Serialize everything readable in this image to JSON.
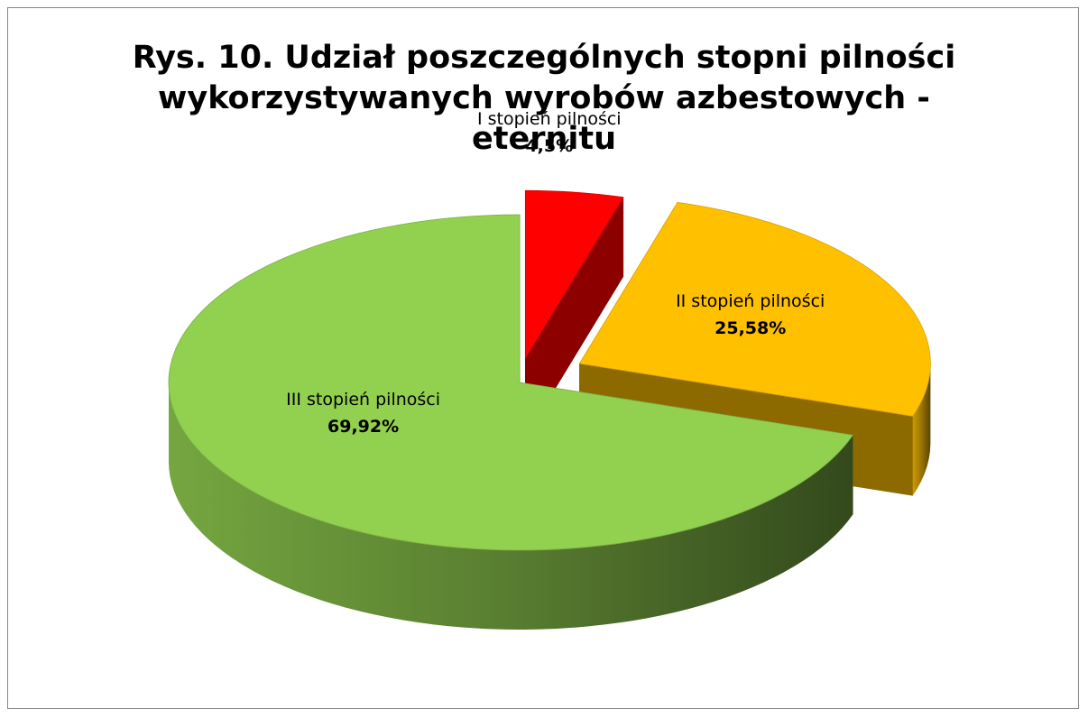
{
  "chart_data": {
    "type": "pie3d",
    "title": "Rys. 10. Udział poszczególnych stopni pilności wykorzystywanych wyrobów azbestowych - eternitu",
    "categories": [
      "I stopień pilności",
      "II stopień pilności",
      "III stopień pilności"
    ],
    "values": [
      4.5,
      25.58,
      69.92
    ],
    "value_labels": [
      "4,5%",
      "25,58%",
      "69,92%"
    ],
    "colors": [
      "#ff0000",
      "#ffc000",
      "#92d050"
    ]
  }
}
